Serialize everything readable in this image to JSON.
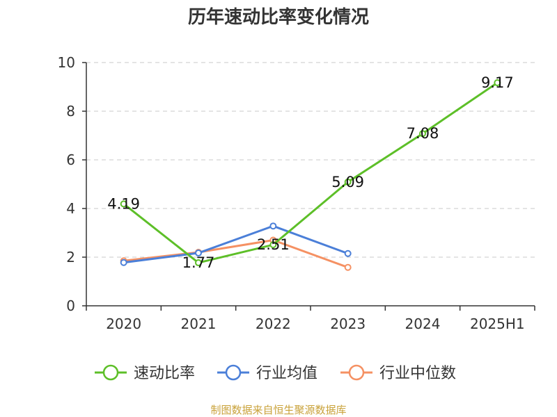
{
  "chart_data": {
    "type": "line",
    "title": "历年速动比率变化情况",
    "categories": [
      "2020",
      "2021",
      "2022",
      "2023",
      "2024",
      "2025H1"
    ],
    "ylim": [
      0,
      10
    ],
    "yticks": [
      0,
      2,
      4,
      6,
      8,
      10
    ],
    "grid": true,
    "legend_position": "bottom",
    "series": [
      {
        "name": "速动比率",
        "color": "#5dbf28",
        "values": [
          4.19,
          1.77,
          2.51,
          5.09,
          7.08,
          9.17
        ],
        "labels": [
          "4.19",
          "1.77",
          "2.51",
          "5.09",
          "7.08",
          "9.17"
        ]
      },
      {
        "name": "行业均值",
        "color": "#4b7fd8",
        "values": [
          1.78,
          2.17,
          3.28,
          2.15,
          null,
          null
        ]
      },
      {
        "name": "行业中位数",
        "color": "#f59163",
        "values": [
          1.85,
          2.2,
          2.7,
          1.58,
          null,
          null
        ]
      }
    ]
  },
  "footer": {
    "text": "制图数据来自恒生聚源数据库",
    "color": "#c9a23a"
  }
}
